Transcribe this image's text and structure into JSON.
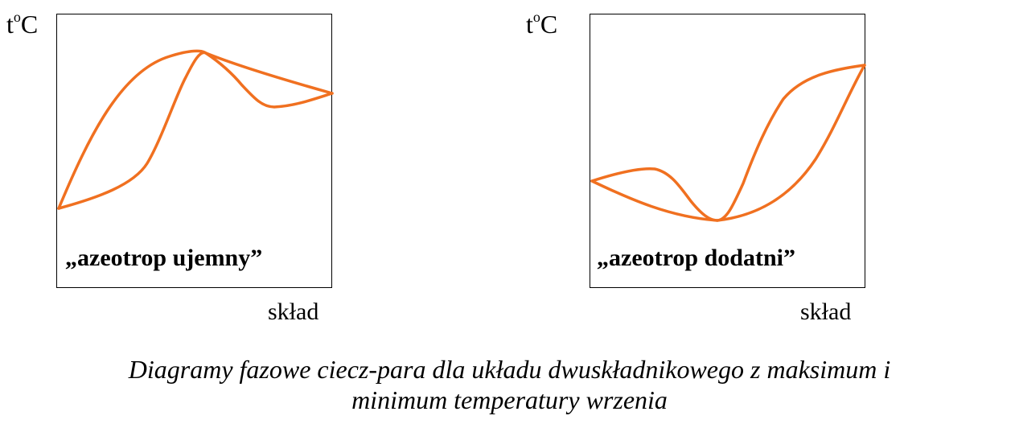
{
  "diagrams": [
    {
      "ylabel": "t",
      "ylabel_sup": "o",
      "ylabel_unit": "C",
      "xlabel": "skład",
      "label": "„azeotrop ujemny”",
      "stroke_color": "#f07020"
    },
    {
      "ylabel": "t",
      "ylabel_sup": "o",
      "ylabel_unit": "C",
      "xlabel": "skład",
      "label": "„azeotrop dodatni”",
      "stroke_color": "#f07020"
    }
  ],
  "caption": {
    "line1": "Diagramy fazowe ciecz-para dla układu dwuskładnikowego z maksimum i",
    "line2": "minimum temperatury wrzenia"
  }
}
